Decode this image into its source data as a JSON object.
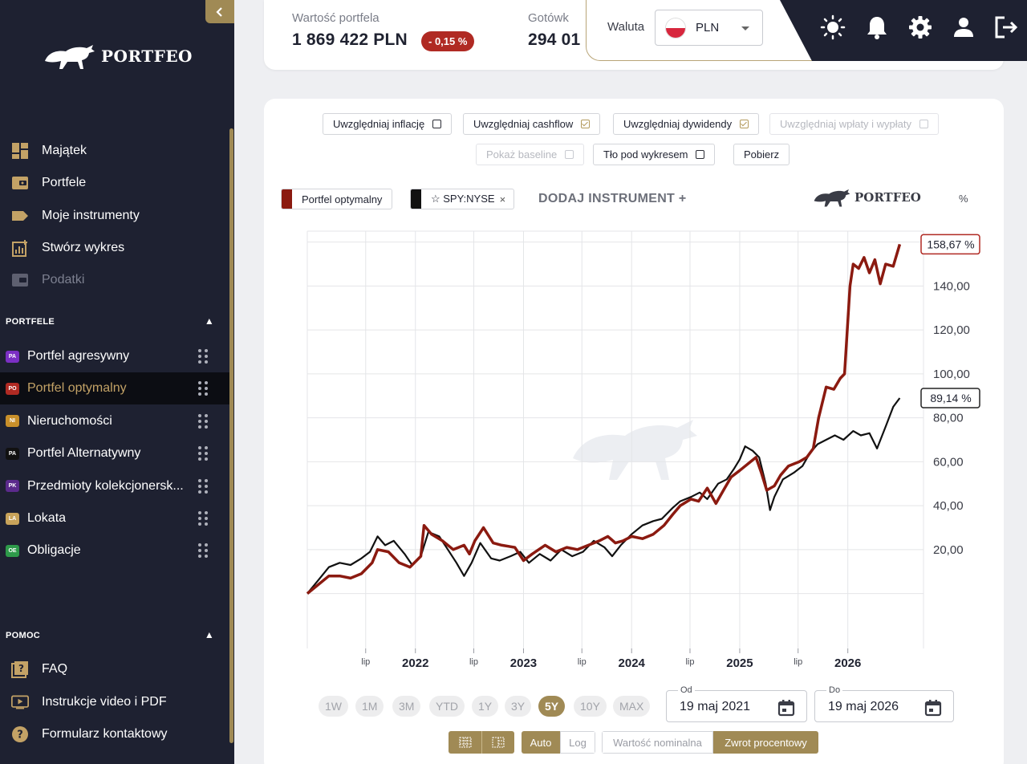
{
  "sidebar": {
    "brand": "PORTFEO",
    "nav": [
      {
        "label": "Majątek",
        "icon": "dashboard-icon",
        "disabled": false
      },
      {
        "label": "Portfele",
        "icon": "wallet-icon",
        "disabled": false
      },
      {
        "label": "Moje instrumenty",
        "icon": "tag-icon",
        "disabled": false
      },
      {
        "label": "Stwórz wykres",
        "icon": "chart-add-icon",
        "disabled": false
      },
      {
        "label": "Podatki",
        "icon": "tax-wallet-icon",
        "disabled": true
      }
    ],
    "portfolios_header": "PORTFELE",
    "portfolios": [
      {
        "badge": "PA",
        "label": "Portfel agresywny",
        "color": "#7b2fc4",
        "active": false
      },
      {
        "badge": "PO",
        "label": "Portfel optymalny",
        "color": "#b02a23",
        "active": true
      },
      {
        "badge": "NI",
        "label": "Nieruchomości",
        "color": "#c88f2a",
        "active": false
      },
      {
        "badge": "PA",
        "label": "Portfel Alternatywny",
        "color": "#111111",
        "active": false
      },
      {
        "badge": "PK",
        "label": "Przedmioty kolekcjonersk...",
        "color": "#5b2a8c",
        "active": false
      },
      {
        "badge": "LA",
        "label": "Lokata",
        "color": "#c8a35a",
        "active": false
      },
      {
        "badge": "OE",
        "label": "Obligacje",
        "color": "#2e9a4a",
        "active": false
      }
    ],
    "help_header": "POMOC",
    "help": [
      {
        "label": "FAQ",
        "icon": "faq-icon"
      },
      {
        "label": "Instrukcje video i PDF",
        "icon": "video-icon"
      },
      {
        "label": "Formularz kontaktowy",
        "icon": "help-circle-icon"
      }
    ]
  },
  "topbar": {
    "portfolio_value_label": "Wartość portfela",
    "portfolio_value": "1 869 422 PLN",
    "change": "- 0,15 %",
    "cash_label": "Gotówk",
    "cash_value": "294 01",
    "currency_label": "Waluta",
    "currency": "PLN"
  },
  "chart_options": {
    "row1": [
      {
        "label": "Uwzględniaj inflację",
        "checked": false,
        "disabled": false
      },
      {
        "label": "Uwzględniaj cashflow",
        "checked": true,
        "disabled": false
      },
      {
        "label": "Uwzględniaj dywidendy",
        "checked": true,
        "disabled": false
      },
      {
        "label": "Uwzględniaj wpłaty i wypłaty",
        "checked": false,
        "disabled": true
      }
    ],
    "row2": [
      {
        "label": "Pokaż baseline",
        "checked": false,
        "disabled": true
      },
      {
        "label": "Tło pod wykresem",
        "checked": false,
        "disabled": false
      }
    ],
    "download": "Pobierz"
  },
  "legend": {
    "series1": "Portfel optymalny",
    "series2": "☆ SPY:NYSE",
    "remove": "×",
    "add_instrument": "DODAJ INSTRUMENT +",
    "brand": "PORTFEO",
    "percent_toggle": "%"
  },
  "ranges": {
    "items": [
      "1W",
      "1M",
      "3M",
      "YTD",
      "1Y",
      "3Y",
      "5Y",
      "10Y",
      "MAX"
    ],
    "active": "5Y"
  },
  "dates": {
    "from_label": "Od",
    "from": "19 maj 2021",
    "to_label": "Do",
    "to": "19 maj 2026"
  },
  "scale": {
    "auto": "Auto",
    "log": "Log",
    "nominal": "Wartość nominalna",
    "percent": "Zwrot procentowy"
  },
  "chart_data": {
    "type": "line",
    "ylim": [
      -25,
      165
    ],
    "y_ticks": [
      "20,00",
      "40,00",
      "60,00",
      "80,00",
      "100,00",
      "120,00",
      "140,00"
    ],
    "x_ticks": [
      {
        "t": 2021.54,
        "label": "lip",
        "major": false
      },
      {
        "t": 2022.0,
        "label": "2022",
        "major": true
      },
      {
        "t": 2022.54,
        "label": "lip",
        "major": false
      },
      {
        "t": 2023.0,
        "label": "2023",
        "major": true
      },
      {
        "t": 2023.54,
        "label": "lip",
        "major": false
      },
      {
        "t": 2024.0,
        "label": "2024",
        "major": true
      },
      {
        "t": 2024.54,
        "label": "lip",
        "major": false
      },
      {
        "t": 2025.0,
        "label": "2025",
        "major": true
      },
      {
        "t": 2025.54,
        "label": "lip",
        "major": false
      },
      {
        "t": 2026.0,
        "label": "2026",
        "major": true
      }
    ],
    "x_range": [
      2021.0,
      2026.7
    ],
    "series": [
      {
        "name": "Portfel optymalny",
        "color": "#8b1a10",
        "last_label": "158,67 %",
        "points": [
          [
            2021.0,
            0
          ],
          [
            2021.1,
            4
          ],
          [
            2021.2,
            8
          ],
          [
            2021.3,
            8
          ],
          [
            2021.4,
            7
          ],
          [
            2021.5,
            9
          ],
          [
            2021.6,
            14
          ],
          [
            2021.65,
            20
          ],
          [
            2021.75,
            19
          ],
          [
            2021.85,
            14
          ],
          [
            2021.95,
            12
          ],
          [
            2022.05,
            17
          ],
          [
            2022.08,
            31
          ],
          [
            2022.15,
            27
          ],
          [
            2022.25,
            24
          ],
          [
            2022.35,
            20
          ],
          [
            2022.45,
            22
          ],
          [
            2022.5,
            18
          ],
          [
            2022.55,
            24
          ],
          [
            2022.63,
            30
          ],
          [
            2022.72,
            23
          ],
          [
            2022.8,
            22
          ],
          [
            2022.92,
            21
          ],
          [
            2023.0,
            15
          ],
          [
            2023.08,
            18
          ],
          [
            2023.2,
            22
          ],
          [
            2023.3,
            19
          ],
          [
            2023.4,
            21
          ],
          [
            2023.5,
            20
          ],
          [
            2023.6,
            22
          ],
          [
            2023.7,
            24
          ],
          [
            2023.78,
            26
          ],
          [
            2023.85,
            23
          ],
          [
            2023.92,
            24
          ],
          [
            2024.0,
            26
          ],
          [
            2024.1,
            25
          ],
          [
            2024.2,
            27
          ],
          [
            2024.3,
            31
          ],
          [
            2024.38,
            36
          ],
          [
            2024.45,
            40
          ],
          [
            2024.55,
            43
          ],
          [
            2024.62,
            42
          ],
          [
            2024.7,
            48
          ],
          [
            2024.78,
            41
          ],
          [
            2024.85,
            47
          ],
          [
            2024.92,
            53
          ],
          [
            2025.0,
            56
          ],
          [
            2025.05,
            58
          ],
          [
            2025.1,
            60
          ],
          [
            2025.15,
            62
          ],
          [
            2025.2,
            55
          ],
          [
            2025.25,
            47
          ],
          [
            2025.32,
            49
          ],
          [
            2025.38,
            54
          ],
          [
            2025.45,
            58
          ],
          [
            2025.55,
            60
          ],
          [
            2025.62,
            62
          ],
          [
            2025.68,
            66
          ],
          [
            2025.73,
            80
          ],
          [
            2025.8,
            94
          ],
          [
            2025.87,
            93
          ],
          [
            2025.93,
            98
          ],
          [
            2025.97,
            100
          ],
          [
            2026.02,
            140
          ],
          [
            2026.05,
            150
          ],
          [
            2026.1,
            148
          ],
          [
            2026.15,
            153
          ],
          [
            2026.2,
            146
          ],
          [
            2026.25,
            152
          ],
          [
            2026.3,
            141
          ],
          [
            2026.35,
            150
          ],
          [
            2026.42,
            149
          ],
          [
            2026.48,
            159
          ]
        ]
      },
      {
        "name": "SPY:NYSE",
        "color": "#111111",
        "last_label": "89,14 %",
        "points": [
          [
            2021.0,
            0
          ],
          [
            2021.1,
            6
          ],
          [
            2021.2,
            12
          ],
          [
            2021.3,
            14
          ],
          [
            2021.4,
            13
          ],
          [
            2021.5,
            16
          ],
          [
            2021.58,
            19
          ],
          [
            2021.65,
            26
          ],
          [
            2021.72,
            22
          ],
          [
            2021.8,
            24
          ],
          [
            2021.9,
            18
          ],
          [
            2021.97,
            13
          ],
          [
            2022.05,
            17
          ],
          [
            2022.12,
            28
          ],
          [
            2022.22,
            26
          ],
          [
            2022.3,
            20
          ],
          [
            2022.38,
            14
          ],
          [
            2022.45,
            8
          ],
          [
            2022.52,
            14
          ],
          [
            2022.6,
            23
          ],
          [
            2022.7,
            16
          ],
          [
            2022.78,
            15
          ],
          [
            2022.88,
            17
          ],
          [
            2022.97,
            19
          ],
          [
            2023.05,
            14
          ],
          [
            2023.15,
            18
          ],
          [
            2023.25,
            15
          ],
          [
            2023.35,
            20
          ],
          [
            2023.45,
            17
          ],
          [
            2023.55,
            19
          ],
          [
            2023.65,
            24
          ],
          [
            2023.75,
            21
          ],
          [
            2023.82,
            17
          ],
          [
            2023.9,
            22
          ],
          [
            2024.0,
            27
          ],
          [
            2024.1,
            31
          ],
          [
            2024.2,
            33
          ],
          [
            2024.28,
            34
          ],
          [
            2024.38,
            39
          ],
          [
            2024.45,
            42
          ],
          [
            2024.55,
            44
          ],
          [
            2024.63,
            46
          ],
          [
            2024.7,
            43
          ],
          [
            2024.8,
            50
          ],
          [
            2024.88,
            52
          ],
          [
            2024.95,
            57
          ],
          [
            2025.0,
            61
          ],
          [
            2025.05,
            67
          ],
          [
            2025.12,
            65
          ],
          [
            2025.18,
            62
          ],
          [
            2025.24,
            50
          ],
          [
            2025.28,
            38
          ],
          [
            2025.32,
            44
          ],
          [
            2025.4,
            52
          ],
          [
            2025.5,
            55
          ],
          [
            2025.58,
            58
          ],
          [
            2025.65,
            64
          ],
          [
            2025.72,
            68
          ],
          [
            2025.8,
            70
          ],
          [
            2025.88,
            72
          ],
          [
            2025.96,
            70
          ],
          [
            2026.05,
            74
          ],
          [
            2026.12,
            72
          ],
          [
            2026.2,
            73
          ],
          [
            2026.27,
            66
          ],
          [
            2026.35,
            76
          ],
          [
            2026.42,
            85
          ],
          [
            2026.48,
            89
          ]
        ]
      }
    ]
  }
}
